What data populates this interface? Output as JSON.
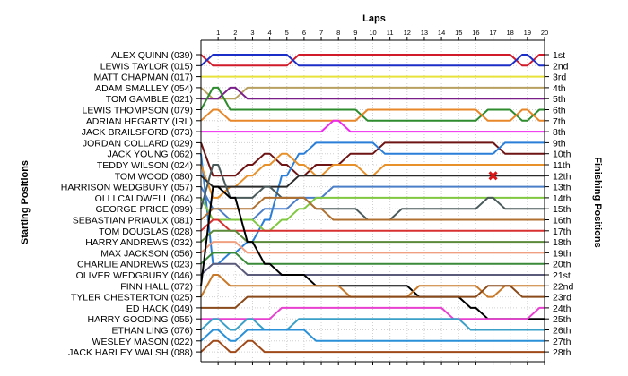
{
  "chart_data": {
    "type": "line",
    "title": "",
    "xlabel": "Laps",
    "ylabel_left": "Starting Positions",
    "ylabel_right": "Finishing Positions",
    "x": [
      0,
      1,
      2,
      3,
      4,
      5,
      6,
      7,
      8,
      9,
      10,
      11,
      12,
      13,
      14,
      15,
      16,
      17,
      18,
      19,
      20
    ],
    "lap_tick_labels": [
      "1",
      "2",
      "3",
      "4",
      "5",
      "6",
      "7",
      "8",
      "9",
      "10",
      "11",
      "12",
      "13",
      "14",
      "15",
      "16",
      "17",
      "18",
      "19",
      "20"
    ],
    "ylim": [
      1,
      28
    ],
    "grid": true,
    "starting_labels": [
      "ALEX QUINN (039)",
      "LEWIS TAYLOR (015)",
      "MATT CHAPMAN (017)",
      "ADAM SMALLEY (054)",
      "TOM GAMBLE (021)",
      "LEWIS THOMPSON (079)",
      "ADRIAN HEGARTY (IRL)",
      "JACK BRAILSFORD (073)",
      "JORDAN COLLARD (029)",
      "JACK YOUNG (062)",
      "TEDDY WILSON (024)",
      "TOM WOOD (080)",
      "HARRISON WEDGBURY (057)",
      "OLLI CALDWELL (064)",
      "GEORGE PRICE (099)",
      "SEBASTIAN PRIAULX (081)",
      "TOM DOUGLAS (028)",
      "HARRY ANDREWS (032)",
      "MAX JACKSON (056)",
      "CHARLIE ANDREWS (023)",
      "OLIVER WEDGBURY (046)",
      "FINN HALL (072)",
      "TYLER CHESTERTON (025)",
      "ED HACK (049)",
      "HARRY GOODING (055)",
      "ETHAN LING (076)",
      "WESLEY MASON (022)",
      "JACK HARLEY WALSH (088)"
    ],
    "finishing_labels": [
      "1st",
      "2nd",
      "3rd",
      "4th",
      "5th",
      "6th",
      "7th",
      "8th",
      "9th",
      "10th",
      "11th",
      "12th",
      "13th",
      "14th",
      "15th",
      "16th",
      "17th",
      "18th",
      "19th",
      "20th",
      "21st",
      "22nd",
      "23rd",
      "24th",
      "25th",
      "26th",
      "27th",
      "28th"
    ],
    "retirement_marker": {
      "x": 17,
      "y": 12
    },
    "series": [
      {
        "color": "#d11a2a",
        "values": [
          1,
          2,
          2,
          2,
          2,
          2,
          1,
          1,
          1,
          1,
          1,
          1,
          1,
          1,
          1,
          1,
          1,
          1,
          1,
          2,
          1
        ]
      },
      {
        "color": "#1c2ec8",
        "values": [
          2,
          1,
          1,
          1,
          1,
          1,
          2,
          2,
          2,
          2,
          2,
          2,
          2,
          2,
          2,
          2,
          2,
          2,
          2,
          1,
          2
        ]
      },
      {
        "color": "#e8e23a",
        "values": [
          3,
          3,
          3,
          3,
          3,
          3,
          3,
          3,
          3,
          3,
          3,
          3,
          3,
          3,
          3,
          3,
          3,
          3,
          3,
          3,
          3
        ]
      },
      {
        "color": "#b8a060",
        "values": [
          4,
          5,
          5,
          4,
          4,
          4,
          4,
          4,
          4,
          4,
          4,
          4,
          4,
          4,
          4,
          4,
          4,
          4,
          4,
          4,
          4
        ]
      },
      {
        "color": "#7a1f8a",
        "values": [
          5,
          5,
          4,
          5,
          5,
          5,
          5,
          5,
          5,
          5,
          5,
          5,
          5,
          5,
          5,
          5,
          5,
          5,
          5,
          5,
          5
        ]
      },
      {
        "color": "#2e8b2e",
        "values": [
          6,
          4,
          6,
          6,
          6,
          6,
          6,
          6,
          6,
          6,
          7,
          7,
          7,
          7,
          7,
          7,
          7,
          6,
          6,
          7,
          6
        ]
      },
      {
        "color": "#e8872a",
        "values": [
          7,
          6,
          7,
          7,
          7,
          7,
          7,
          7,
          7,
          7,
          6,
          6,
          6,
          6,
          6,
          6,
          6,
          7,
          7,
          6,
          7
        ]
      },
      {
        "color": "#ee2aee",
        "values": [
          8,
          8,
          8,
          8,
          8,
          8,
          8,
          8,
          7,
          8,
          8,
          8,
          8,
          8,
          8,
          8,
          8,
          8,
          8,
          8,
          8
        ]
      },
      {
        "color": "#6e1414",
        "values": [
          9,
          12,
          12,
          11,
          10,
          11,
          12,
          11,
          11,
          10,
          10,
          9,
          9,
          9,
          9,
          9,
          9,
          9,
          10,
          10,
          10
        ]
      },
      {
        "color": "#2a7ed8",
        "values": [
          10,
          20,
          19,
          18,
          16,
          12,
          10,
          9,
          9,
          9,
          9,
          10,
          10,
          10,
          10,
          10,
          10,
          10,
          9,
          9,
          9
        ]
      },
      {
        "color": "#e8902a",
        "values": [
          11,
          14,
          13,
          12,
          11,
          10,
          11,
          12,
          11,
          11,
          12,
          11,
          11,
          11,
          11,
          11,
          11,
          11,
          11,
          11,
          11
        ]
      },
      {
        "color": "#2a2a2a",
        "values": [
          12,
          13,
          13,
          13,
          13,
          13,
          12,
          12,
          12,
          12,
          12,
          12,
          12,
          12,
          12,
          12,
          12,
          12,
          12,
          12,
          12
        ]
      },
      {
        "color": "#4a7ec8",
        "values": [
          13,
          15,
          16,
          16,
          15,
          15,
          14,
          14,
          13,
          13,
          13,
          13,
          13,
          13,
          13,
          13,
          13,
          13,
          13,
          13,
          13
        ]
      },
      {
        "color": "#80c840",
        "values": [
          14,
          16,
          16,
          16,
          17,
          16,
          15,
          14,
          14,
          14,
          14,
          14,
          14,
          14,
          14,
          14,
          14,
          14,
          14,
          14,
          14
        ]
      },
      {
        "color": "#4a5a5a",
        "values": [
          15,
          11,
          14,
          14,
          13,
          14,
          14,
          15,
          15,
          15,
          16,
          16,
          15,
          15,
          15,
          15,
          15,
          14,
          15,
          15,
          15
        ]
      },
      {
        "color": "#b07030",
        "values": [
          16,
          15,
          15,
          15,
          14,
          14,
          14,
          15,
          16,
          16,
          16,
          16,
          16,
          16,
          16,
          16,
          16,
          16,
          16,
          16,
          16
        ]
      },
      {
        "color": "#d83030",
        "values": [
          17,
          16,
          17,
          17,
          17,
          17,
          17,
          17,
          17,
          17,
          17,
          17,
          17,
          17,
          17,
          17,
          17,
          17,
          17,
          17,
          17
        ]
      },
      {
        "color": "#5a8a3a",
        "values": [
          18,
          17,
          17,
          18,
          18,
          18,
          18,
          18,
          18,
          18,
          18,
          18,
          18,
          18,
          18,
          18,
          18,
          18,
          18,
          18,
          18
        ]
      },
      {
        "color": "#f0a080",
        "values": [
          19,
          18,
          18,
          19,
          19,
          19,
          19,
          19,
          19,
          19,
          19,
          19,
          19,
          19,
          19,
          19,
          19,
          19,
          19,
          19,
          19
        ]
      },
      {
        "color": "#3a8a3a",
        "values": [
          20,
          19,
          19,
          20,
          20,
          20,
          20,
          20,
          20,
          20,
          20,
          20,
          20,
          20,
          20,
          20,
          20,
          20,
          20,
          20,
          20
        ]
      },
      {
        "color": "#5a5a7a",
        "values": [
          21,
          20,
          20,
          21,
          21,
          21,
          21,
          21,
          21,
          21,
          21,
          21,
          21,
          21,
          21,
          21,
          21,
          21,
          21,
          21,
          21
        ]
      },
      {
        "color": "#000000",
        "values": [
          22,
          13,
          14,
          18,
          20,
          21,
          21,
          22,
          22,
          22,
          22,
          22,
          22,
          23,
          23,
          23,
          24,
          25,
          25,
          25,
          25
        ]
      },
      {
        "color": "#c87a2a",
        "values": [
          23,
          21,
          22,
          22,
          22,
          22,
          22,
          22,
          22,
          23,
          23,
          23,
          23,
          22,
          22,
          22,
          22,
          23,
          22,
          22,
          22
        ]
      },
      {
        "color": "#8a4a1a",
        "values": [
          24,
          24,
          24,
          23,
          23,
          23,
          23,
          23,
          23,
          23,
          23,
          23,
          23,
          23,
          23,
          23,
          23,
          22,
          22,
          23,
          23
        ]
      },
      {
        "color": "#e840d0",
        "values": [
          25,
          25,
          25,
          25,
          25,
          24,
          24,
          24,
          24,
          24,
          24,
          24,
          24,
          24,
          24,
          25,
          25,
          25,
          25,
          25,
          24
        ]
      },
      {
        "color": "#3aa0c8",
        "values": [
          26,
          25,
          26,
          25,
          26,
          26,
          25,
          25,
          25,
          25,
          25,
          25,
          25,
          25,
          25,
          25,
          26,
          26,
          26,
          26,
          26
        ]
      },
      {
        "color": "#2a90d8",
        "values": [
          27,
          26,
          27,
          26,
          26,
          26,
          26,
          27,
          27,
          27,
          27,
          27,
          27,
          27,
          27,
          27,
          27,
          27,
          27,
          27,
          27
        ]
      },
      {
        "color": "#a04a1a",
        "values": [
          28,
          27,
          28,
          27,
          28,
          28,
          28,
          28,
          28,
          28,
          28,
          28,
          28,
          28,
          28,
          28,
          28,
          28,
          28,
          28,
          28
        ]
      }
    ]
  }
}
